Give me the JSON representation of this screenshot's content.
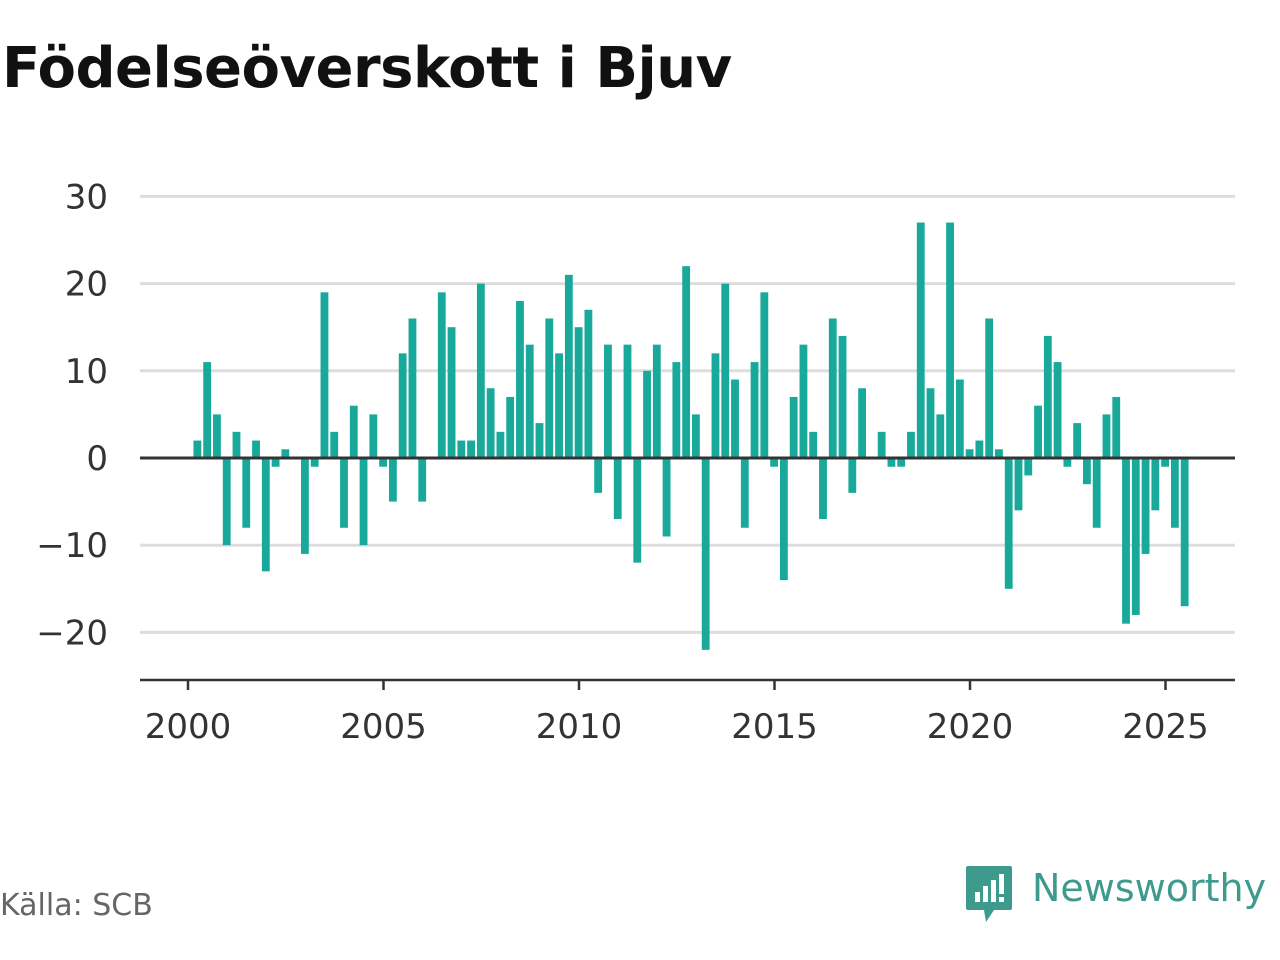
{
  "title": "Födelseöverskott i Bjuv",
  "source": "Källa: SCB",
  "brand": {
    "name": "Newsworthy",
    "icon": "newsworthy-logo-icon",
    "color": "#3d9a8c"
  },
  "chart_data": {
    "type": "bar",
    "title": "Födelseöverskott i Bjuv",
    "xlabel": "",
    "ylabel": "",
    "ylim": [
      -25,
      30
    ],
    "xlim": [
      2000,
      2026.8
    ],
    "grid": true,
    "bar_color": "#18a99b",
    "y_ticks": [
      30,
      20,
      10,
      0,
      -10,
      -20
    ],
    "y_tick_labels": [
      "30",
      "20",
      "10",
      "0",
      "−10",
      "−20"
    ],
    "x_ticks": [
      2000,
      2005,
      2010,
      2015,
      2020,
      2025
    ],
    "x_tick_labels": [
      "2000",
      "2005",
      "2010",
      "2015",
      "2020",
      "2025"
    ],
    "frequency": "quarterly",
    "start_year": 2000,
    "values": [
      2,
      11,
      5,
      -10,
      3,
      -8,
      2,
      -13,
      -1,
      1,
      0,
      -11,
      -1,
      19,
      3,
      -8,
      6,
      -10,
      5,
      -1,
      -5,
      12,
      16,
      -5,
      0,
      19,
      15,
      2,
      2,
      20,
      8,
      3,
      7,
      18,
      13,
      4,
      16,
      12,
      21,
      15,
      17,
      -4,
      13,
      -7,
      13,
      -12,
      10,
      13,
      -9,
      11,
      22,
      5,
      -22,
      12,
      20,
      9,
      -8,
      11,
      19,
      -1,
      -14,
      7,
      13,
      3,
      -7,
      16,
      14,
      -4,
      8,
      0,
      3,
      -1,
      -1,
      3,
      27,
      8,
      5,
      27,
      9,
      1,
      2,
      16,
      1,
      -15,
      -6,
      -2,
      6,
      14,
      11,
      -1,
      4,
      -3,
      -8,
      5,
      7,
      -19,
      -18,
      -11,
      -6,
      -1,
      -8,
      -17
    ]
  }
}
